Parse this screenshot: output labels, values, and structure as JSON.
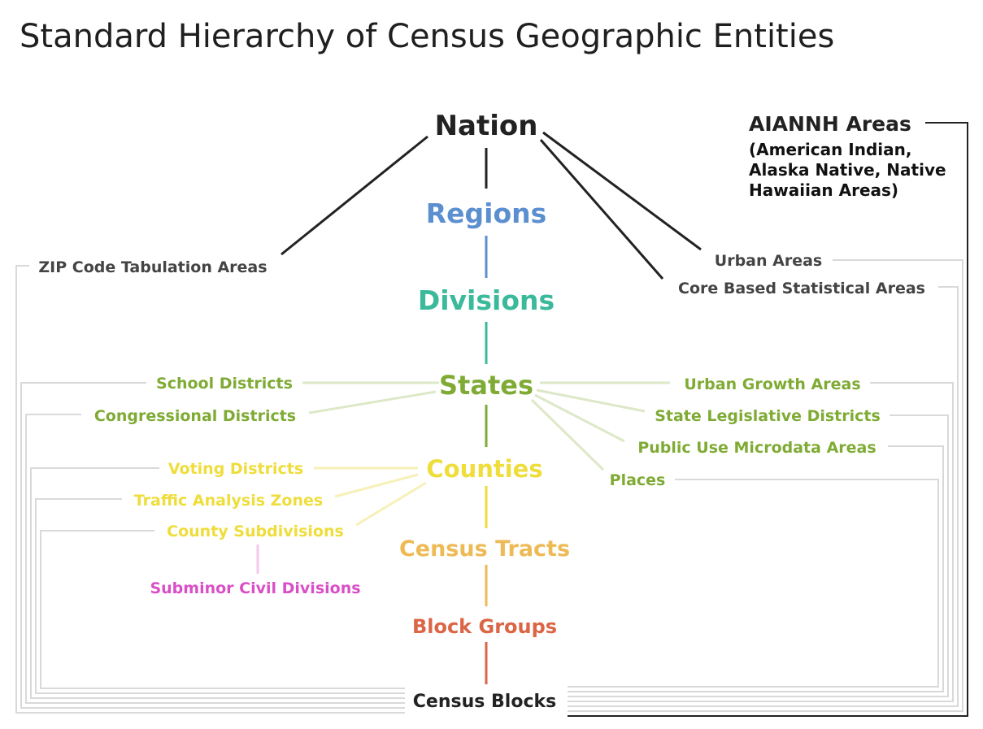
{
  "title": "Standard Hierarchy of Census Geographic Entities",
  "colors": {
    "black": "#222222",
    "regions": "#5b8fd0",
    "divisions": "#3bb99b",
    "states": "#7fab35",
    "counties": "#eedd3a",
    "tracts": "#eeba55",
    "block_groups": "#db6545",
    "subminor": "#d94fc8",
    "gray_text": "#444444",
    "gray_line": "#d9d9d9"
  },
  "nodes": {
    "nation": "Nation",
    "regions": "Regions",
    "divisions": "Divisions",
    "states": "States",
    "counties": "Counties",
    "census_tracts": "Census Tracts",
    "block_groups": "Block Groups",
    "census_blocks": "Census Blocks",
    "zcta": "ZIP Code Tabulation Areas",
    "urban_areas": "Urban Areas",
    "cbsa": "Core Based Statistical Areas",
    "aiannh_title": "AIANNH Areas",
    "aiannh_sub": [
      "(American Indian,",
      "Alaska Native, Native",
      "Hawaiian Areas)"
    ],
    "school_districts": "School Districts",
    "congressional_districts": "Congressional Districts",
    "urban_growth_areas": "Urban Growth Areas",
    "state_legislative_districts": "State Legislative Districts",
    "puma": "Public Use Microdata Areas",
    "places": "Places",
    "voting_districts": "Voting Districts",
    "traffic_analysis_zones": "Traffic Analysis Zones",
    "county_subdivisions": "County Subdivisions",
    "subminor_civil_divisions": "Subminor Civil Divisions"
  }
}
